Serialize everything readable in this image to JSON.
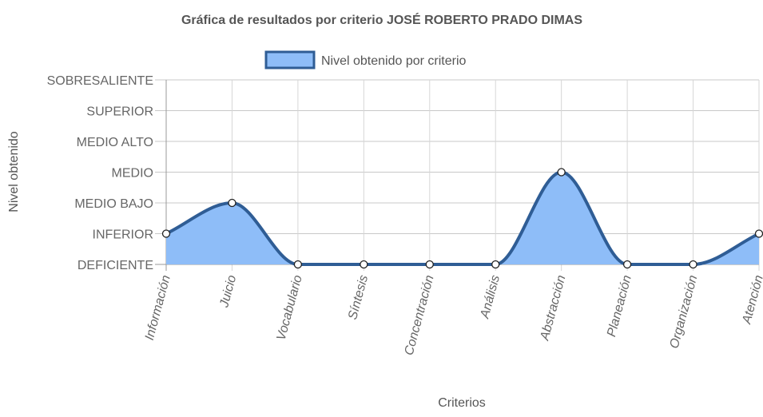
{
  "chart_data": {
    "type": "area",
    "title": "Gráfica de resultados por criterio JOSÉ ROBERTO PRADO DIMAS",
    "xlabel": "Criterios",
    "ylabel": "Nivel obtenido",
    "legend_position": "top",
    "grid": true,
    "categories": [
      "Información",
      "Juicio",
      "Vocabulario",
      "Síntesis",
      "Concentración",
      "Análisis",
      "Abstracción",
      "Planeación",
      "Organización",
      "Atención"
    ],
    "y_levels": [
      "DEFICIENTE",
      "INFERIOR",
      "MEDIO BAJO",
      "MEDIO",
      "MEDIO ALTO",
      "SUPERIOR",
      "SOBRESALIENTE"
    ],
    "ylim": [
      0,
      6
    ],
    "series": [
      {
        "name": "Nivel obtenido por criterio",
        "values": [
          1,
          2,
          0,
          0,
          0,
          0,
          3,
          0,
          0,
          1
        ],
        "fill_color": "#8ebdf8",
        "line_color": "#2f5d95"
      }
    ]
  }
}
